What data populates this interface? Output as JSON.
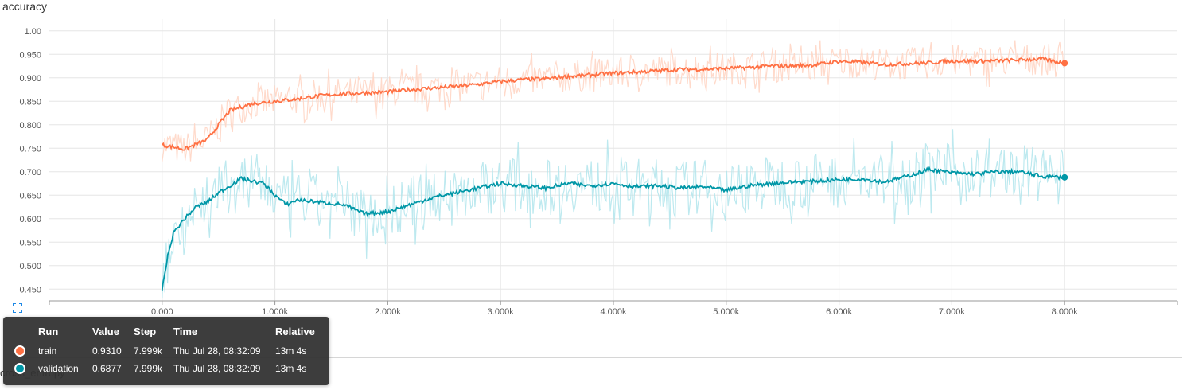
{
  "chart_data": {
    "type": "line",
    "title": "accuracy",
    "xlabel": "",
    "ylabel": "",
    "x_ticks": [
      "0.000",
      "1.000k",
      "2.000k",
      "3.000k",
      "4.000k",
      "5.000k",
      "6.000k",
      "7.000k",
      "8.000k"
    ],
    "y_ticks": [
      "0.450",
      "0.500",
      "0.550",
      "0.600",
      "0.650",
      "0.700",
      "0.750",
      "0.800",
      "0.850",
      "0.900",
      "0.950",
      "1.00"
    ],
    "xlim": [
      -1000,
      9000
    ],
    "ylim": [
      0.425,
      1.025
    ],
    "grid": true,
    "series": [
      {
        "name": "train",
        "color": "#ff7043",
        "raw_color": "#ffd4c2",
        "x": [
          0,
          200,
          400,
          500,
          600,
          800,
          1000,
          1200,
          1400,
          1600,
          1800,
          2000,
          2200,
          2400,
          2600,
          2800,
          3000,
          3200,
          3400,
          3600,
          3800,
          4000,
          4200,
          4400,
          4600,
          4800,
          5000,
          5200,
          5400,
          5600,
          5800,
          6000,
          6200,
          6400,
          6600,
          6800,
          7000,
          7200,
          7400,
          7600,
          7800,
          8000
        ],
        "y": [
          0.757,
          0.748,
          0.768,
          0.8,
          0.83,
          0.845,
          0.85,
          0.855,
          0.862,
          0.866,
          0.868,
          0.87,
          0.875,
          0.878,
          0.882,
          0.886,
          0.892,
          0.896,
          0.898,
          0.903,
          0.906,
          0.91,
          0.912,
          0.915,
          0.918,
          0.918,
          0.92,
          0.922,
          0.925,
          0.925,
          0.928,
          0.935,
          0.933,
          0.928,
          0.93,
          0.932,
          0.936,
          0.935,
          0.936,
          0.938,
          0.94,
          0.931
        ]
      },
      {
        "name": "validation",
        "color": "#0097a7",
        "raw_color": "#b2e5ec",
        "x": [
          0,
          50,
          100,
          200,
          300,
          400,
          500,
          600,
          700,
          800,
          900,
          1000,
          1100,
          1200,
          1400,
          1600,
          1800,
          2000,
          2200,
          2400,
          2600,
          2800,
          3000,
          3200,
          3400,
          3600,
          3800,
          4000,
          4200,
          4400,
          4600,
          4800,
          5000,
          5200,
          5400,
          5600,
          5800,
          6000,
          6200,
          6400,
          6600,
          6800,
          7000,
          7200,
          7400,
          7600,
          7800,
          8000
        ],
        "y": [
          0.45,
          0.52,
          0.57,
          0.6,
          0.625,
          0.635,
          0.655,
          0.67,
          0.685,
          0.68,
          0.675,
          0.65,
          0.63,
          0.64,
          0.635,
          0.63,
          0.61,
          0.615,
          0.63,
          0.645,
          0.655,
          0.665,
          0.675,
          0.67,
          0.665,
          0.675,
          0.67,
          0.675,
          0.668,
          0.67,
          0.665,
          0.668,
          0.66,
          0.67,
          0.675,
          0.678,
          0.68,
          0.683,
          0.685,
          0.678,
          0.69,
          0.705,
          0.698,
          0.695,
          0.7,
          0.7,
          0.69,
          0.688
        ]
      }
    ]
  },
  "tooltip": {
    "headers": {
      "run": "Run",
      "value": "Value",
      "step": "Step",
      "time": "Time",
      "relative": "Relative"
    },
    "rows": [
      {
        "run": "train",
        "value": "0.9310",
        "step": "7.999k",
        "time": "Thu Jul 28, 08:32:09",
        "relative": "13m 4s",
        "color": "#ff7043"
      },
      {
        "run": "validation",
        "value": "0.6877",
        "step": "7.999k",
        "time": "Thu Jul 28, 08:32:09",
        "relative": "13m 4s",
        "color": "#0097a7"
      }
    ]
  },
  "next_chart_title": "cross_entropy"
}
